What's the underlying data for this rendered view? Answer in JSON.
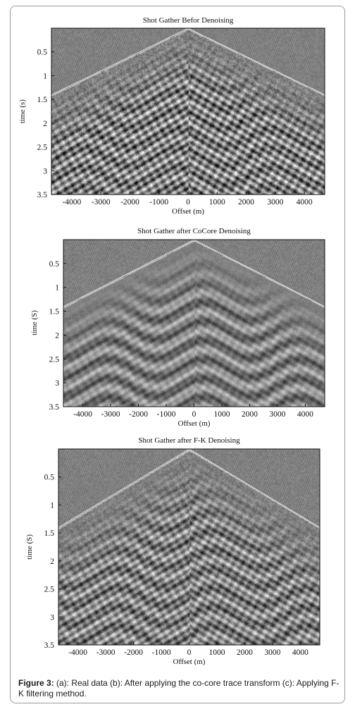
{
  "caption": {
    "label": "Figure 3:",
    "text": " (a): Real data (b): After applying the co-core trace transform (c): Applying F-K filtering method."
  },
  "colors": {
    "background": "#ffffff",
    "border": "#9a9a9a",
    "text": "#111111"
  },
  "chart_data": [
    {
      "type": "heatmap",
      "title": "Shot Gather Befor Denoising",
      "xlabel": "Offset (m)",
      "ylabel": "time (s)",
      "x_ticks": [
        "-4000",
        "-3000",
        "-2000",
        "-1000",
        "0",
        "1000",
        "2000",
        "3000",
        "4000"
      ],
      "y_ticks": [
        "0.5",
        "1",
        "1.5",
        "2",
        "2.5",
        "3",
        "3.5"
      ],
      "xlim": [
        -4700,
        4700
      ],
      "ylim": [
        0,
        3.5
      ],
      "y_reversed": true,
      "first_break_apex": {
        "offset": 0,
        "time": 0.0
      },
      "first_break_edge_time": 1.4,
      "noise_level": "high",
      "colormap": "gray"
    },
    {
      "type": "heatmap",
      "title": "Shot Gather after CoCore Denoising",
      "xlabel": "Offset (m)",
      "ylabel": "time (S)",
      "x_ticks": [
        "-4000",
        "-3000",
        "-2000",
        "-1000",
        "0",
        "1000",
        "2000",
        "3000",
        "4000"
      ],
      "y_ticks": [
        "0.5",
        "1",
        "1.5",
        "2",
        "2.5",
        "3",
        "3.5"
      ],
      "xlim": [
        -4700,
        4700
      ],
      "ylim": [
        0,
        3.5
      ],
      "y_reversed": true,
      "first_break_apex": {
        "offset": 0,
        "time": 0.0
      },
      "first_break_edge_time": 1.4,
      "noise_level": "low",
      "colormap": "gray"
    },
    {
      "type": "heatmap",
      "title": "Shot Gather after F-K Denoising",
      "xlabel": "Offset (m)",
      "ylabel": "time (S)",
      "x_ticks": [
        "-4000",
        "-3000",
        "-2000",
        "-1000",
        "0",
        "1000",
        "2000",
        "3000",
        "4000"
      ],
      "y_ticks": [
        "0.5",
        "1",
        "1.5",
        "2",
        "2.5",
        "3",
        "3.5"
      ],
      "xlim": [
        -4700,
        4700
      ],
      "ylim": [
        0,
        3.5
      ],
      "y_reversed": true,
      "first_break_apex": {
        "offset": 0,
        "time": 0.0
      },
      "first_break_edge_time": 1.4,
      "noise_level": "medium",
      "colormap": "gray"
    }
  ]
}
